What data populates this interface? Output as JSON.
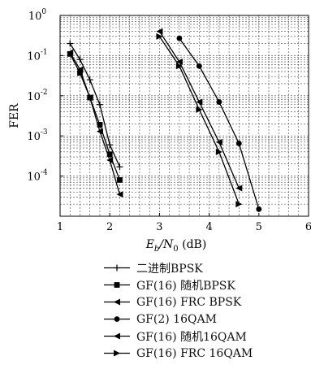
{
  "chart_data": {
    "type": "line",
    "title": "",
    "xlabel_main": "E",
    "xlabel_sub1": "b",
    "xlabel_mid": "/N",
    "xlabel_sub2": "0",
    "xlabel_unit": " (dB)",
    "ylabel": "FER",
    "xlim": [
      1,
      6
    ],
    "ylim_log10": [
      -5,
      0
    ],
    "yscale": "log",
    "grid": true,
    "x_ticks": [
      {
        "value": 1,
        "label": "1"
      },
      {
        "value": 2,
        "label": "2"
      },
      {
        "value": 3,
        "label": "3"
      },
      {
        "value": 4,
        "label": "4"
      },
      {
        "value": 5,
        "label": "5"
      },
      {
        "value": 6,
        "label": "6"
      }
    ],
    "y_ticks": [
      {
        "exp": 0,
        "base": "10",
        "sup": "0"
      },
      {
        "exp": -1,
        "base": "10",
        "sup": "-1"
      },
      {
        "exp": -2,
        "base": "10",
        "sup": "-2"
      },
      {
        "exp": -3,
        "base": "10",
        "sup": "-3"
      },
      {
        "exp": -4,
        "base": "10",
        "sup": "-4"
      }
    ],
    "legend_position": "bottom",
    "series": [
      {
        "name": "二进制BPSK",
        "marker": "plus",
        "x": [
          1.2,
          1.4,
          1.6,
          1.8,
          2.0,
          2.2
        ],
        "y": [
          0.2,
          0.08,
          0.025,
          0.006,
          0.0006,
          0.00017
        ]
      },
      {
        "name": "GF(16) 随机BPSK",
        "marker": "square",
        "x": [
          1.2,
          1.4,
          1.6,
          1.8,
          2.0,
          2.2
        ],
        "y": [
          0.11,
          0.037,
          0.009,
          0.0019,
          0.00035,
          8e-05
        ]
      },
      {
        "name": "GF(16) FRC BPSK",
        "marker": "triangle-left",
        "x": [
          1.2,
          1.4,
          1.6,
          1.8,
          2.0,
          2.2
        ],
        "y": [
          0.12,
          0.045,
          0.009,
          0.0013,
          0.00025,
          3.5e-05
        ]
      },
      {
        "name": "GF(2) 16QAM",
        "marker": "circle",
        "x": [
          3.4,
          3.8,
          4.2,
          4.6,
          5.0
        ],
        "y": [
          0.27,
          0.055,
          0.007,
          0.00065,
          1.5e-05
        ]
      },
      {
        "name": "GF(16) 随机16QAM",
        "marker": "triangle-left",
        "x": [
          3.0,
          3.4,
          3.8,
          4.2,
          4.6
        ],
        "y": [
          0.4,
          0.07,
          0.007,
          0.0007,
          5e-05
        ]
      },
      {
        "name": "GF(16) FRC 16QAM",
        "marker": "triangle-right",
        "x": [
          3.0,
          3.4,
          3.8,
          4.2,
          4.6
        ],
        "y": [
          0.3,
          0.055,
          0.0045,
          0.0004,
          2e-05
        ]
      }
    ]
  }
}
